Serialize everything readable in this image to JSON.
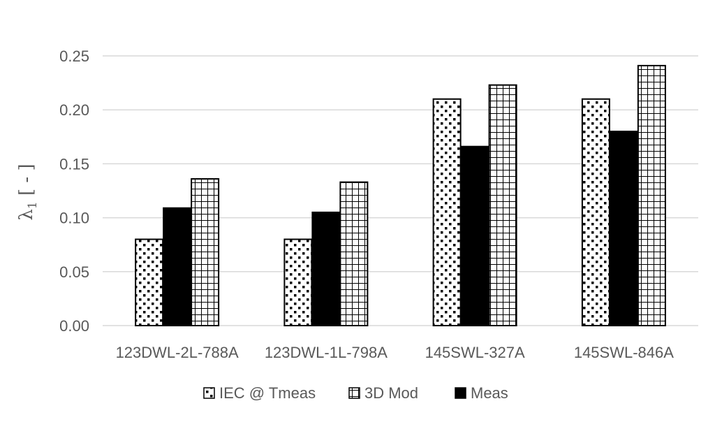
{
  "chart_data": {
    "type": "bar",
    "title": "",
    "xlabel": "",
    "ylabel": "λ1 [ - ]",
    "ylabel_symbol": "λ",
    "ylabel_subscript": "1",
    "ylabel_unit": " [ - ]",
    "ylim": [
      0,
      0.25
    ],
    "yticks": [
      0.0,
      0.05,
      0.1,
      0.15,
      0.2,
      0.25
    ],
    "ytick_labels": [
      "0.00",
      "0.05",
      "0.10",
      "0.15",
      "0.20",
      "0.25"
    ],
    "grid": true,
    "legend_position": "bottom",
    "categories": [
      "123DWL-2L-788A",
      "123DWL-1L-798A",
      "145SWL-327A",
      "145SWL-846A"
    ],
    "series": [
      {
        "name": "IEC @ Tmeas",
        "pattern": "dots",
        "values": [
          0.08,
          0.08,
          0.21,
          0.21
        ]
      },
      {
        "name": "Meas",
        "pattern": "solid",
        "values": [
          0.109,
          0.105,
          0.166,
          0.18
        ]
      },
      {
        "name": "3D Mod",
        "pattern": "grid",
        "values": [
          0.136,
          0.133,
          0.223,
          0.241
        ]
      }
    ],
    "legend_order": [
      "IEC @ Tmeas",
      "3D Mod",
      "Meas"
    ],
    "colors": {
      "bar": "#000000",
      "fill": "#ffffff",
      "grid": "#d9d9d9",
      "text": "#595959"
    }
  }
}
